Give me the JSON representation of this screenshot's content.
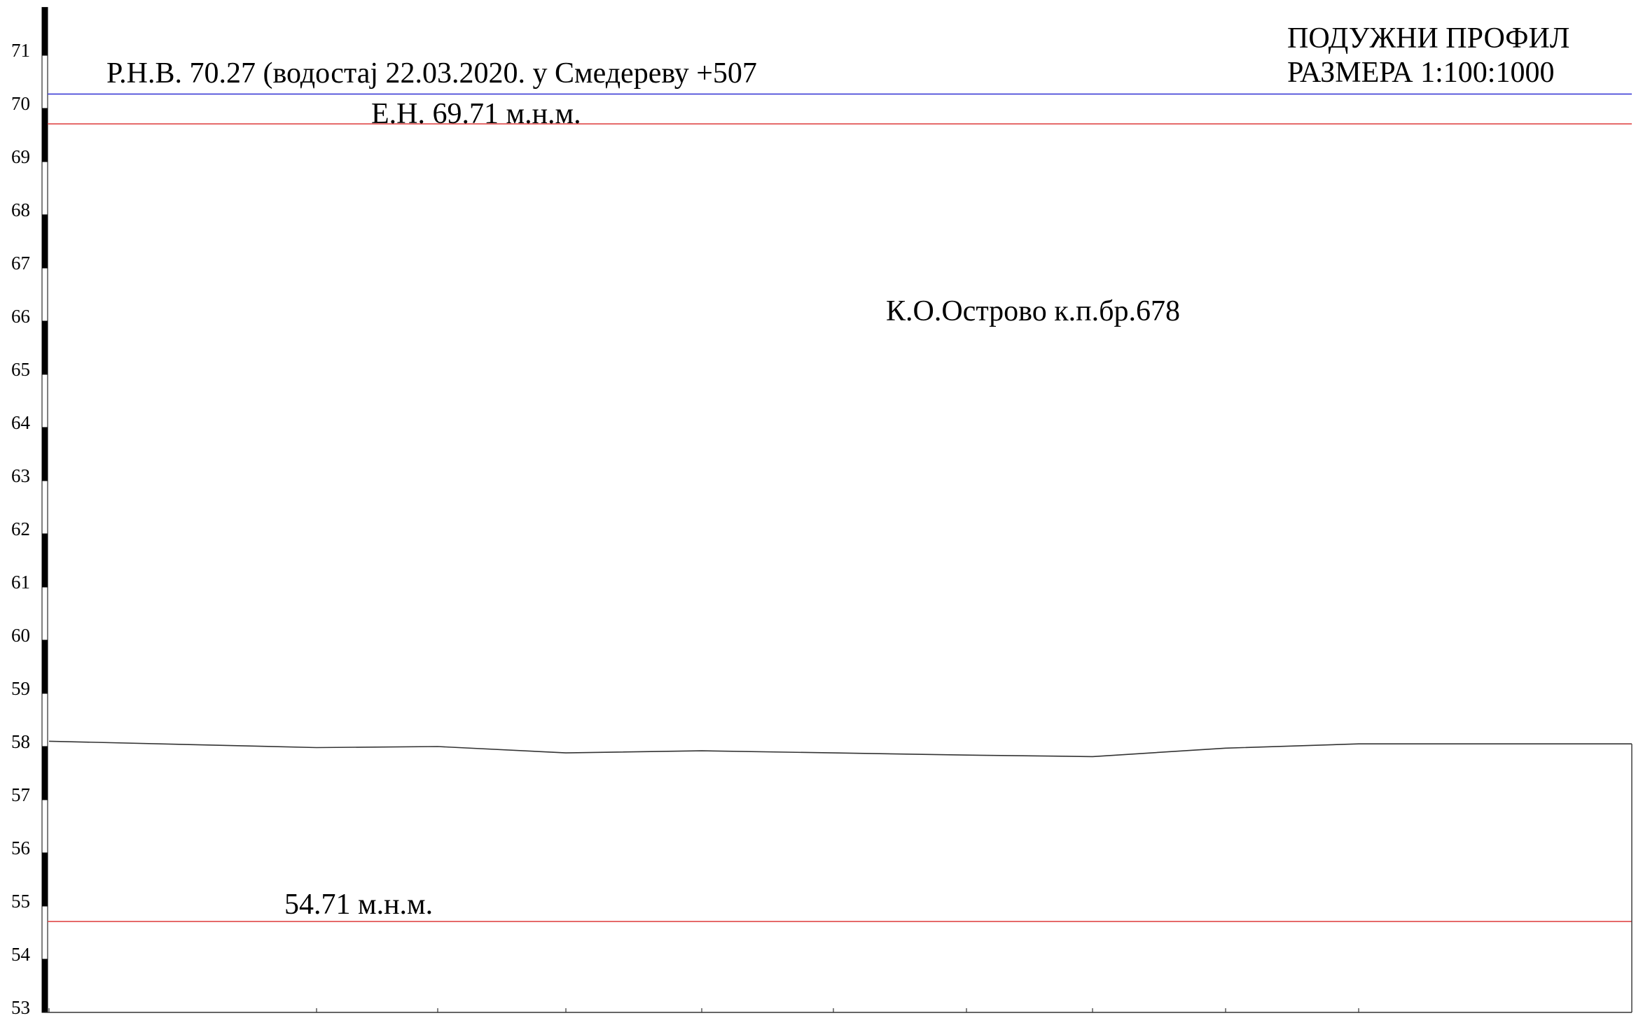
{
  "header": {
    "title_line1": "ПОДУЖНИ ПРОФИЛ",
    "title_line2": "РАЗМЕРА 1:100:1000"
  },
  "annotations": {
    "rnv": "Р.Н.В. 70.27 (водостај 22.03.2020. у Смедереву +507",
    "en": "Е.Н. 69.71 м.н.м.",
    "bottom_level": "54.71 м.н.м.",
    "parcel": "К.О.Острово к.п.бр.678"
  },
  "colors": {
    "rnv_line": "#3b3bd6",
    "level_line": "#e04848",
    "terrain": "#333333",
    "axis": "#000000"
  },
  "chart_data": {
    "type": "line",
    "title": "ПОДУЖНИ ПРОФИЛ",
    "subtitle": "РАЗМЕРА 1:100:1000",
    "ylim": [
      53,
      71.9
    ],
    "y_ticks": [
      53,
      54,
      55,
      56,
      57,
      58,
      59,
      60,
      61,
      62,
      63,
      64,
      65,
      66,
      67,
      68,
      69,
      70,
      71
    ],
    "y_tick_labels": [
      "53",
      "54",
      "55",
      "56",
      "57",
      "58",
      "59",
      "60",
      "61",
      "62",
      "63",
      "64",
      "65",
      "66",
      "67",
      "68",
      "69",
      "70",
      "71"
    ],
    "station_ticks": 12,
    "reference_levels": [
      {
        "name": "Р.Н.В.",
        "value": 70.27
      },
      {
        "name": "Е.Н.",
        "value": 69.71
      },
      {
        "name": "54.71 м.н.м.",
        "value": 54.71
      }
    ],
    "terrain": {
      "x": [
        0,
        1,
        2,
        3,
        4,
        5,
        6,
        7,
        8,
        9,
        10,
        11,
        12
      ],
      "y": [
        58.1,
        57.98,
        58.0,
        57.88,
        57.92,
        57.88,
        57.84,
        57.81,
        57.97,
        58.05,
        58.05,
        58.05,
        58.05
      ]
    },
    "grid": false
  }
}
